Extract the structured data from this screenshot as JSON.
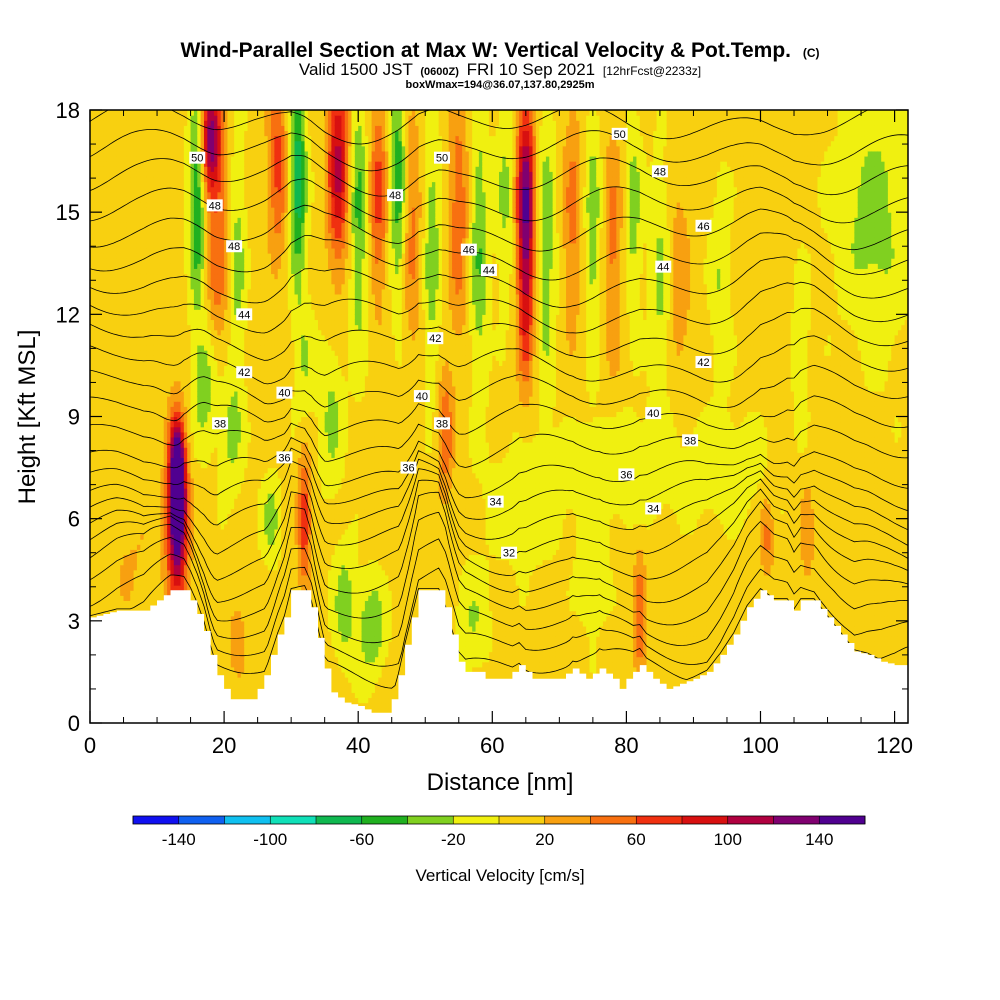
{
  "chart_data": {
    "type": "heatmap",
    "title": "Wind-Parallel Section at Max W: Vertical Velocity & Pot.Temp.",
    "copyright": "(C)",
    "subtitle_parts": {
      "valid": "Valid 1500 JST",
      "utc": "(0600Z)",
      "date": "FRI 10 Sep 2021",
      "forecast": "[12hrFcst@2233z]"
    },
    "box_info": "boxWmax=194@36.07,137.80,2925m",
    "xlabel": "Distance [nm]",
    "ylabel": "Height [Kft MSL]",
    "xlim": [
      0,
      122
    ],
    "ylim": [
      0,
      18
    ],
    "x_ticks": [
      "0",
      "20",
      "40",
      "60",
      "80",
      "100",
      "120"
    ],
    "y_ticks": [
      "0",
      "3",
      "6",
      "9",
      "12",
      "15",
      "18"
    ],
    "colorbar": {
      "title": "Vertical Velocity [cm/s]",
      "labels": [
        "-140",
        "-100",
        "-60",
        "-20",
        "20",
        "60",
        "100",
        "140"
      ],
      "bounds": [
        -160,
        160
      ],
      "step": 20,
      "colors": [
        "#1010f0",
        "#1060f0",
        "#10c0f0",
        "#10e0b8",
        "#10b850",
        "#20b020",
        "#80d020",
        "#f0f010",
        "#f8d010",
        "#f8a010",
        "#f87010",
        "#f03010",
        "#d81010",
        "#b00040",
        "#800070",
        "#500090"
      ]
    },
    "terrain_kft": [
      [
        0,
        3.1
      ],
      [
        4,
        3.3
      ],
      [
        8,
        3.3
      ],
      [
        10,
        3.6
      ],
      [
        12,
        3.9
      ],
      [
        14,
        3.9
      ],
      [
        15,
        3.6
      ],
      [
        16,
        3.2
      ],
      [
        17,
        2.7
      ],
      [
        18,
        2.0
      ],
      [
        19,
        1.4
      ],
      [
        20,
        1.0
      ],
      [
        21,
        0.7
      ],
      [
        24,
        0.7
      ],
      [
        25,
        1.0
      ],
      [
        26,
        1.4
      ],
      [
        27,
        2.0
      ],
      [
        28,
        2.6
      ],
      [
        29,
        3.1
      ],
      [
        30,
        3.9
      ],
      [
        32,
        3.9
      ],
      [
        33,
        3.4
      ],
      [
        34,
        2.5
      ],
      [
        35,
        1.6
      ],
      [
        36,
        0.9
      ],
      [
        38,
        0.6
      ],
      [
        40,
        0.5
      ],
      [
        42,
        0.3
      ],
      [
        44,
        0.3
      ],
      [
        45,
        0.7
      ],
      [
        46,
        1.4
      ],
      [
        47,
        2.3
      ],
      [
        48,
        3.1
      ],
      [
        49,
        3.9
      ],
      [
        52,
        3.9
      ],
      [
        53,
        3.4
      ],
      [
        54,
        2.6
      ],
      [
        55,
        1.8
      ],
      [
        56,
        1.5
      ],
      [
        58,
        1.5
      ],
      [
        59,
        1.3
      ],
      [
        62,
        1.3
      ],
      [
        64,
        1.7
      ],
      [
        66,
        1.3
      ],
      [
        70,
        1.3
      ],
      [
        72,
        1.6
      ],
      [
        74,
        1.3
      ],
      [
        76,
        1.6
      ],
      [
        78,
        1.3
      ],
      [
        79,
        1.0
      ],
      [
        80,
        1.3
      ],
      [
        82,
        1.7
      ],
      [
        84,
        1.3
      ],
      [
        86,
        1.0
      ],
      [
        90,
        1.3
      ],
      [
        92,
        1.5
      ],
      [
        94,
        2.0
      ],
      [
        96,
        2.6
      ],
      [
        98,
        3.4
      ],
      [
        100,
        3.9
      ],
      [
        102,
        3.6
      ],
      [
        104,
        3.6
      ],
      [
        105,
        3.3
      ],
      [
        106,
        3.6
      ],
      [
        108,
        3.6
      ],
      [
        110,
        3.1
      ],
      [
        112,
        2.6
      ],
      [
        114,
        2.1
      ],
      [
        116,
        2.0
      ],
      [
        118,
        1.8
      ],
      [
        120,
        1.7
      ],
      [
        122,
        1.7
      ]
    ],
    "w_cells": [
      {
        "x": 13,
        "y": 7.0,
        "w": 170,
        "sx": 1.0,
        "sy": 1.6
      },
      {
        "x": 13,
        "y": 6.0,
        "w": 120,
        "sx": 1.6,
        "sy": 2.6
      },
      {
        "x": 18,
        "y": 17.2,
        "w": 120,
        "sx": 1.5,
        "sy": 1.6
      },
      {
        "x": 19,
        "y": 14.0,
        "w": 50,
        "sx": 1.6,
        "sy": 3.0
      },
      {
        "x": 16,
        "y": 15.5,
        "w": -70,
        "sx": 1.2,
        "sy": 3.0
      },
      {
        "x": 17,
        "y": 10.0,
        "w": -40,
        "sx": 1.8,
        "sy": 1.8
      },
      {
        "x": 21,
        "y": 8.5,
        "w": -30,
        "sx": 1.8,
        "sy": 1.8
      },
      {
        "x": 22,
        "y": 13.5,
        "w": -35,
        "sx": 1.2,
        "sy": 3.5
      },
      {
        "x": 27,
        "y": 6.0,
        "w": -35,
        "sx": 1.4,
        "sy": 1.2
      },
      {
        "x": 28,
        "y": 16.5,
        "w": 60,
        "sx": 1.4,
        "sy": 2.8
      },
      {
        "x": 31,
        "y": 16.0,
        "w": -80,
        "sx": 1.2,
        "sy": 3.0
      },
      {
        "x": 32,
        "y": 6.0,
        "w": 70,
        "sx": 1.0,
        "sy": 2.0
      },
      {
        "x": 32,
        "y": 10.5,
        "w": -25,
        "sx": 1.5,
        "sy": 2.0
      },
      {
        "x": 37,
        "y": 16.5,
        "w": 100,
        "sx": 1.6,
        "sy": 3.0
      },
      {
        "x": 36,
        "y": 9.0,
        "w": -30,
        "sx": 1.8,
        "sy": 2.2
      },
      {
        "x": 40,
        "y": 15.0,
        "w": -50,
        "sx": 1.3,
        "sy": 4.0
      },
      {
        "x": 43,
        "y": 15.5,
        "w": 60,
        "sx": 1.3,
        "sy": 3.0
      },
      {
        "x": 46,
        "y": 16.0,
        "w": -60,
        "sx": 1.2,
        "sy": 3.5
      },
      {
        "x": 48,
        "y": 14.5,
        "w": 40,
        "sx": 1.4,
        "sy": 3.5
      },
      {
        "x": 51,
        "y": 14.0,
        "w": -40,
        "sx": 1.2,
        "sy": 4.0
      },
      {
        "x": 53,
        "y": 8.5,
        "w": 50,
        "sx": 1.2,
        "sy": 2.0
      },
      {
        "x": 55,
        "y": 15.0,
        "w": 50,
        "sx": 1.5,
        "sy": 3.5
      },
      {
        "x": 58,
        "y": 14.0,
        "w": -45,
        "sx": 1.4,
        "sy": 4.0
      },
      {
        "x": 62,
        "y": 15.5,
        "w": -30,
        "sx": 1.5,
        "sy": 3.0
      },
      {
        "x": 65,
        "y": 15.5,
        "w": 130,
        "sx": 1.4,
        "sy": 2.8
      },
      {
        "x": 65,
        "y": 12.0,
        "w": 60,
        "sx": 1.2,
        "sy": 2.5
      },
      {
        "x": 68,
        "y": 14.0,
        "w": -40,
        "sx": 1.5,
        "sy": 4.0
      },
      {
        "x": 72,
        "y": 15.0,
        "w": 40,
        "sx": 1.5,
        "sy": 3.5
      },
      {
        "x": 75,
        "y": 14.5,
        "w": -40,
        "sx": 1.3,
        "sy": 3.5
      },
      {
        "x": 78,
        "y": 14.0,
        "w": 40,
        "sx": 1.5,
        "sy": 3.5
      },
      {
        "x": 81,
        "y": 15.0,
        "w": -35,
        "sx": 1.3,
        "sy": 3.0
      },
      {
        "x": 85,
        "y": 13.0,
        "w": -30,
        "sx": 1.5,
        "sy": 3.5
      },
      {
        "x": 88,
        "y": 13.0,
        "w": 30,
        "sx": 1.5,
        "sy": 3.0
      },
      {
        "x": 94,
        "y": 13.0,
        "w": -25,
        "sx": 1.5,
        "sy": 3.0
      },
      {
        "x": 106,
        "y": 11.0,
        "w": -25,
        "sx": 1.2,
        "sy": 2.0
      },
      {
        "x": 115,
        "y": 15.0,
        "w": -20,
        "sx": 5.0,
        "sy": 3.0
      },
      {
        "x": 118,
        "y": 14.5,
        "w": -20,
        "sx": 4.0,
        "sy": 4.0
      },
      {
        "x": 80,
        "y": 7.5,
        "w": -25,
        "sx": 8.0,
        "sy": 1.5
      },
      {
        "x": 95,
        "y": 7.5,
        "w": -20,
        "sx": 6.0,
        "sy": 1.5
      },
      {
        "x": 65,
        "y": 6.5,
        "w": -20,
        "sx": 6.0,
        "sy": 1.8
      },
      {
        "x": 38,
        "y": 3.5,
        "w": -40,
        "sx": 1.6,
        "sy": 1.6
      },
      {
        "x": 42,
        "y": 2.8,
        "w": -45,
        "sx": 2.0,
        "sy": 1.4
      },
      {
        "x": 57,
        "y": 3.0,
        "w": -25,
        "sx": 2.5,
        "sy": 1.5
      },
      {
        "x": 82,
        "y": 3.0,
        "w": 50,
        "sx": 1.0,
        "sy": 2.0
      },
      {
        "x": 75,
        "y": 4.5,
        "w": -25,
        "sx": 2.0,
        "sy": 1.8
      },
      {
        "x": 101,
        "y": 5.5,
        "w": 40,
        "sx": 1.0,
        "sy": 1.2
      },
      {
        "x": 107,
        "y": 5.5,
        "w": 30,
        "sx": 1.0,
        "sy": 1.5
      },
      {
        "x": 22,
        "y": 2.5,
        "w": 35,
        "sx": 1.2,
        "sy": 1.0
      },
      {
        "x": 6,
        "y": 5.0,
        "w": 15,
        "sx": 4.0,
        "sy": 2.0
      }
    ],
    "contour_labels": [
      {
        "x": 16,
        "y": 16.6,
        "text": "50"
      },
      {
        "x": 18.6,
        "y": 15.2,
        "text": "48"
      },
      {
        "x": 21.5,
        "y": 14.0,
        "text": "48"
      },
      {
        "x": 23,
        "y": 12.0,
        "text": "44"
      },
      {
        "x": 23,
        "y": 10.3,
        "text": "42"
      },
      {
        "x": 29,
        "y": 9.7,
        "text": "40"
      },
      {
        "x": 19.4,
        "y": 8.8,
        "text": "38"
      },
      {
        "x": 29,
        "y": 7.8,
        "text": "36"
      },
      {
        "x": 52.5,
        "y": 16.6,
        "text": "50"
      },
      {
        "x": 45.5,
        "y": 15.5,
        "text": "48"
      },
      {
        "x": 56.5,
        "y": 13.9,
        "text": "46"
      },
      {
        "x": 59.5,
        "y": 13.3,
        "text": "44"
      },
      {
        "x": 51.5,
        "y": 11.3,
        "text": "42"
      },
      {
        "x": 49.5,
        "y": 9.6,
        "text": "40"
      },
      {
        "x": 52.5,
        "y": 8.8,
        "text": "38"
      },
      {
        "x": 47.5,
        "y": 7.5,
        "text": "36"
      },
      {
        "x": 60.5,
        "y": 6.5,
        "text": "34"
      },
      {
        "x": 62.5,
        "y": 5.0,
        "text": "32"
      },
      {
        "x": 79,
        "y": 17.3,
        "text": "50"
      },
      {
        "x": 85,
        "y": 16.2,
        "text": "48"
      },
      {
        "x": 91.5,
        "y": 14.6,
        "text": "46"
      },
      {
        "x": 85.5,
        "y": 13.4,
        "text": "44"
      },
      {
        "x": 91.5,
        "y": 10.6,
        "text": "42"
      },
      {
        "x": 84,
        "y": 9.1,
        "text": "40"
      },
      {
        "x": 89.5,
        "y": 8.3,
        "text": "38"
      },
      {
        "x": 80,
        "y": 7.3,
        "text": "36"
      },
      {
        "x": 84,
        "y": 6.3,
        "text": "34"
      }
    ]
  }
}
